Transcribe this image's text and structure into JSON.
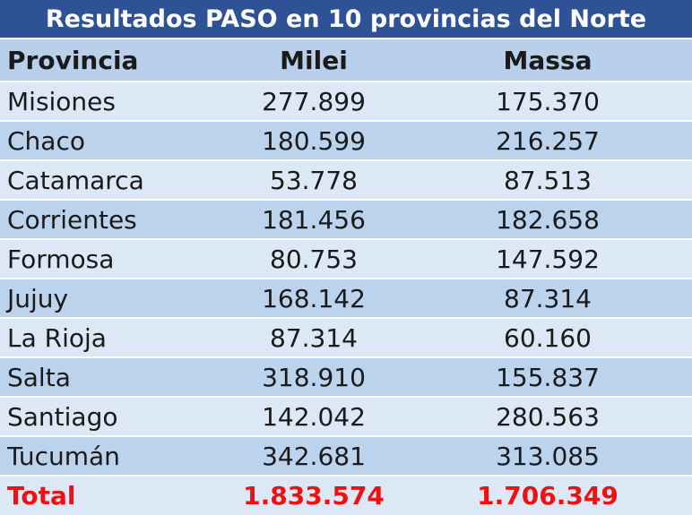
{
  "table": {
    "title": "Resultados PASO en 10 provincias del Norte",
    "header": [
      "Provincia",
      "Milei",
      "Massa"
    ],
    "rows": [
      [
        "Misiones",
        "277.899",
        "175.370"
      ],
      [
        "Chaco",
        "180.599",
        "216.257"
      ],
      [
        "Catamarca",
        "53.778",
        "87.513"
      ],
      [
        "Corrientes",
        "181.456",
        "182.658"
      ],
      [
        "Formosa",
        "80.753",
        "147.592"
      ],
      [
        "Jujuy",
        "168.142",
        "87.314"
      ],
      [
        "La Rioja",
        "87.314",
        "60.160"
      ],
      [
        "Salta",
        "318.910",
        "155.837"
      ],
      [
        "Santiago",
        "142.042",
        "280.563"
      ],
      [
        "Tucumán",
        "342.681",
        "313.085"
      ]
    ],
    "total": [
      "Total",
      "1.833.574",
      "1.706.349"
    ]
  }
}
